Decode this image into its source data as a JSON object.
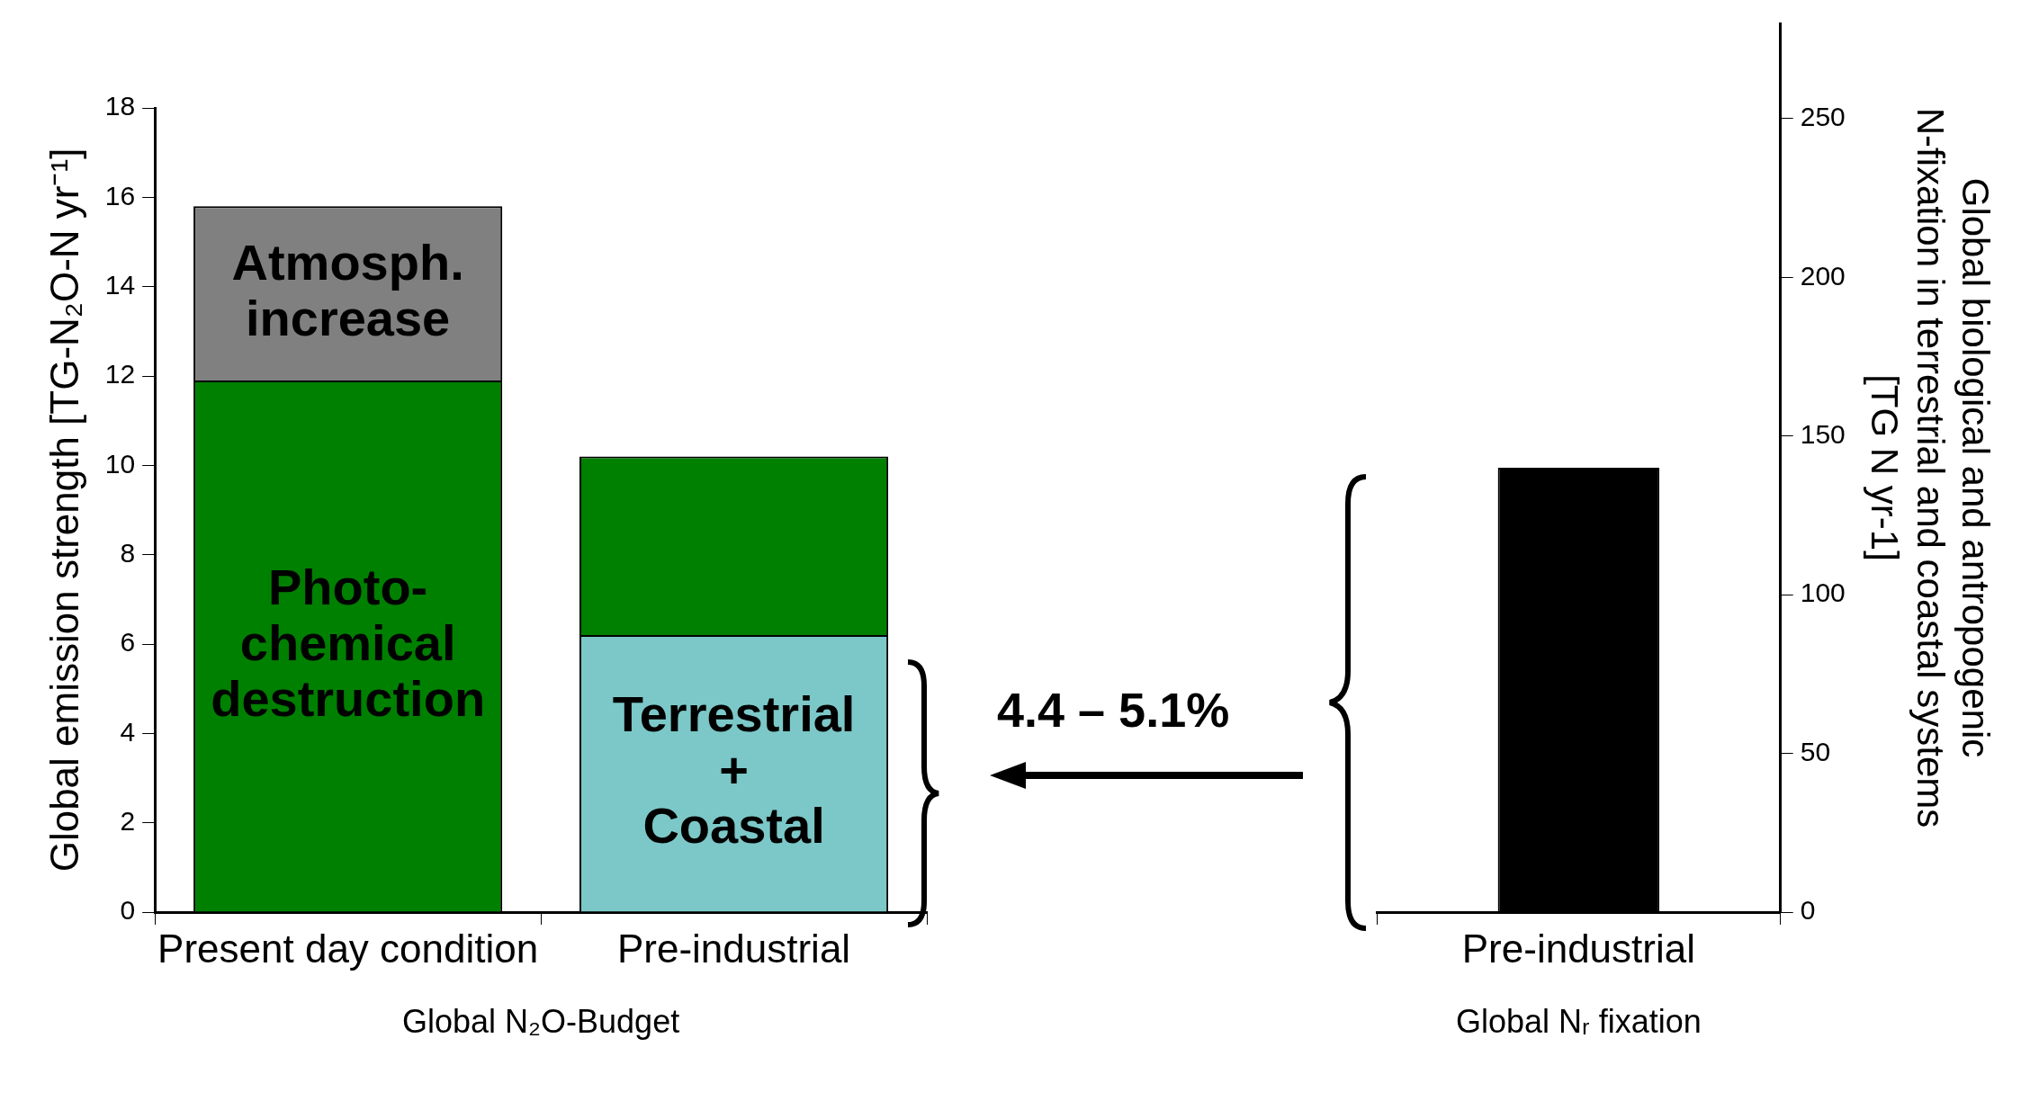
{
  "chart_data": [
    {
      "type": "bar",
      "stacked": true,
      "categories": [
        "Present day condition",
        "Pre-industrial"
      ],
      "series": [
        {
          "name": "Photo-\nchemical\ndestruction",
          "color": "#008000",
          "values": [
            11.9,
            null
          ]
        },
        {
          "name": "Terrestrial\n+\nCoastal",
          "color": "#7cc8c8",
          "values": [
            null,
            6.2
          ]
        },
        {
          "color": "#008000",
          "values": [
            null,
            4.0
          ]
        },
        {
          "name": "Atmosph.\nincrease",
          "color": "#808080",
          "values": [
            3.9,
            null
          ]
        }
      ],
      "ylim": [
        0,
        18
      ],
      "yticks": [
        0,
        2,
        4,
        6,
        8,
        10,
        12,
        14,
        16,
        18
      ],
      "ylabel": "Global emission strength [TG-N₂O-N yr⁻¹]",
      "xlabel": "Global N₂O-Budget",
      "annotations": [
        "4.4 – 5.1%"
      ]
    },
    {
      "type": "bar",
      "categories": [
        "Pre-industrial"
      ],
      "series": [
        {
          "color": "#000000",
          "values": [
            140
          ],
          "axis": "y2"
        }
      ],
      "y2lim": [
        0,
        280
      ],
      "y2ticks": [
        0,
        50,
        100,
        150,
        200,
        250
      ],
      "y2label": "Global biological and antropogenic\nN-fixation in terrestrial and coastal systems\n[TG N yr-1]",
      "xlabel": "Global Nᵣ fixation"
    }
  ]
}
